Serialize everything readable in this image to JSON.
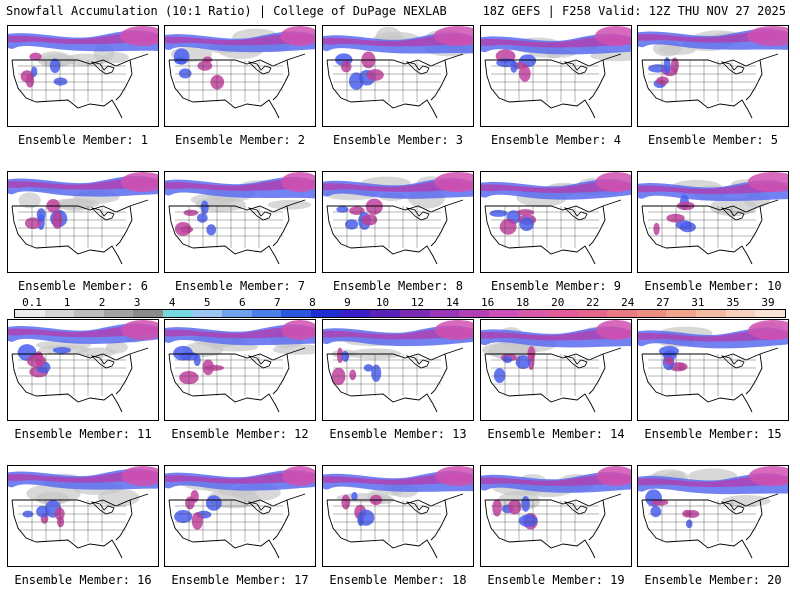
{
  "header": {
    "left": "Snowfall Accumulation (10:1 Ratio) | College of DuPage NEXLAB",
    "right": "18Z GEFS | F258 Valid: 12Z THU NOV 27 2025"
  },
  "legend": {
    "ticks": [
      "0.1",
      "1",
      "2",
      "3",
      "4",
      "5",
      "6",
      "7",
      "8",
      "9",
      "10",
      "12",
      "14",
      "16",
      "18",
      "20",
      "22",
      "24",
      "27",
      "31",
      "35",
      "39"
    ],
    "colors": [
      "#ececec",
      "#d6d6d6",
      "#bdbdbd",
      "#a3a3a3",
      "#8b8b8b",
      "#74d8e0",
      "#9ec6f2",
      "#6fa3ee",
      "#4d7fe8",
      "#2b56de",
      "#1e2fd2",
      "#3a1fc8",
      "#5a22b8",
      "#7b2cb4",
      "#9b36b6",
      "#b33fb4",
      "#cc4fba",
      "#d85aa8",
      "#e25a98",
      "#e5668c",
      "#e87a84",
      "#ec8f80",
      "#f0a58c",
      "#f3bba2",
      "#f6d0bc",
      "#f8e2d4"
    ]
  },
  "members": [
    {
      "label": "Ensemble Member: 1"
    },
    {
      "label": "Ensemble Member: 2"
    },
    {
      "label": "Ensemble Member: 3"
    },
    {
      "label": "Ensemble Member: 4"
    },
    {
      "label": "Ensemble Member: 5"
    },
    {
      "label": "Ensemble Member: 6"
    },
    {
      "label": "Ensemble Member: 7"
    },
    {
      "label": "Ensemble Member: 8"
    },
    {
      "label": "Ensemble Member: 9"
    },
    {
      "label": "Ensemble Member: 10"
    },
    {
      "label": "Ensemble Member: 11"
    },
    {
      "label": "Ensemble Member: 12"
    },
    {
      "label": "Ensemble Member: 13"
    },
    {
      "label": "Ensemble Member: 14"
    },
    {
      "label": "Ensemble Member: 15"
    },
    {
      "label": "Ensemble Member: 16"
    },
    {
      "label": "Ensemble Member: 17"
    },
    {
      "label": "Ensemble Member: 18"
    },
    {
      "label": "Ensemble Member: 19"
    },
    {
      "label": "Ensemble Member: 20"
    }
  ]
}
